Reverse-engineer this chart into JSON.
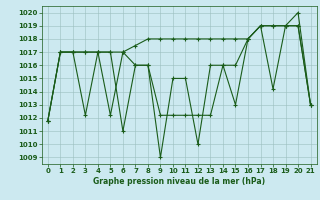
{
  "xlabel": "Graphe pression niveau de la mer (hPa)",
  "bg_color": "#cce9f0",
  "grid_color": "#9bbfbf",
  "line_color": "#1a5c1a",
  "ylim": [
    1008.5,
    1020.5
  ],
  "xlim": [
    -0.5,
    21.5
  ],
  "yticks": [
    1009,
    1010,
    1011,
    1012,
    1013,
    1014,
    1015,
    1016,
    1017,
    1018,
    1019,
    1020
  ],
  "xticks": [
    0,
    1,
    2,
    3,
    4,
    5,
    6,
    7,
    8,
    9,
    10,
    11,
    12,
    13,
    14,
    15,
    16,
    17,
    18,
    19,
    20,
    21
  ],
  "series": [
    [
      1011.8,
      1017.0,
      1017.0,
      1012.2,
      1017.0,
      1017.0,
      1011.0,
      1016.0,
      1016.0,
      1009.0,
      1015.0,
      1015.0,
      1010.0,
      1016.0,
      1016.0,
      1013.0,
      1018.0,
      1019.0,
      1014.2,
      1019.0,
      1020.0,
      1013.0
    ],
    [
      1011.8,
      1017.0,
      1017.0,
      1017.0,
      1017.0,
      1012.2,
      1017.0,
      1016.0,
      1016.0,
      1012.2,
      1012.2,
      1012.2,
      1012.2,
      1012.2,
      1016.0,
      1016.0,
      1018.0,
      1019.0,
      1019.0,
      1019.0,
      1019.0,
      1013.0
    ],
    [
      1011.8,
      1017.0,
      1017.0,
      1017.0,
      1017.0,
      1017.0,
      1017.0,
      1017.5,
      1018.0,
      1018.0,
      1018.0,
      1018.0,
      1018.0,
      1018.0,
      1018.0,
      1018.0,
      1018.0,
      1019.0,
      1019.0,
      1019.0,
      1019.0,
      1013.0
    ]
  ]
}
